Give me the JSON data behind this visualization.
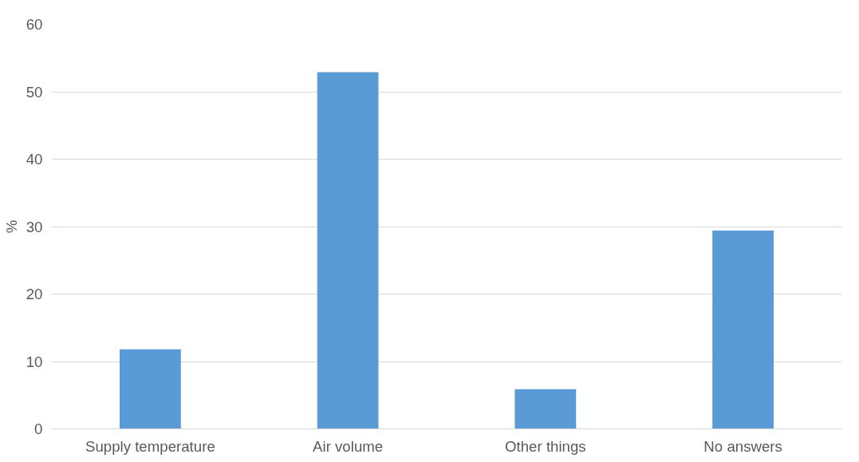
{
  "chart_data": {
    "type": "bar",
    "ylabel": "%",
    "categories": [
      "Supply temperature",
      "Air volume",
      "Other things",
      "No answers"
    ],
    "values": [
      11.8,
      52.9,
      5.9,
      29.4
    ],
    "color": "#5b9bd5",
    "ylim": [
      0,
      60
    ],
    "yticks": [
      0,
      10,
      20,
      30,
      40,
      50,
      60
    ],
    "grid": "y"
  }
}
